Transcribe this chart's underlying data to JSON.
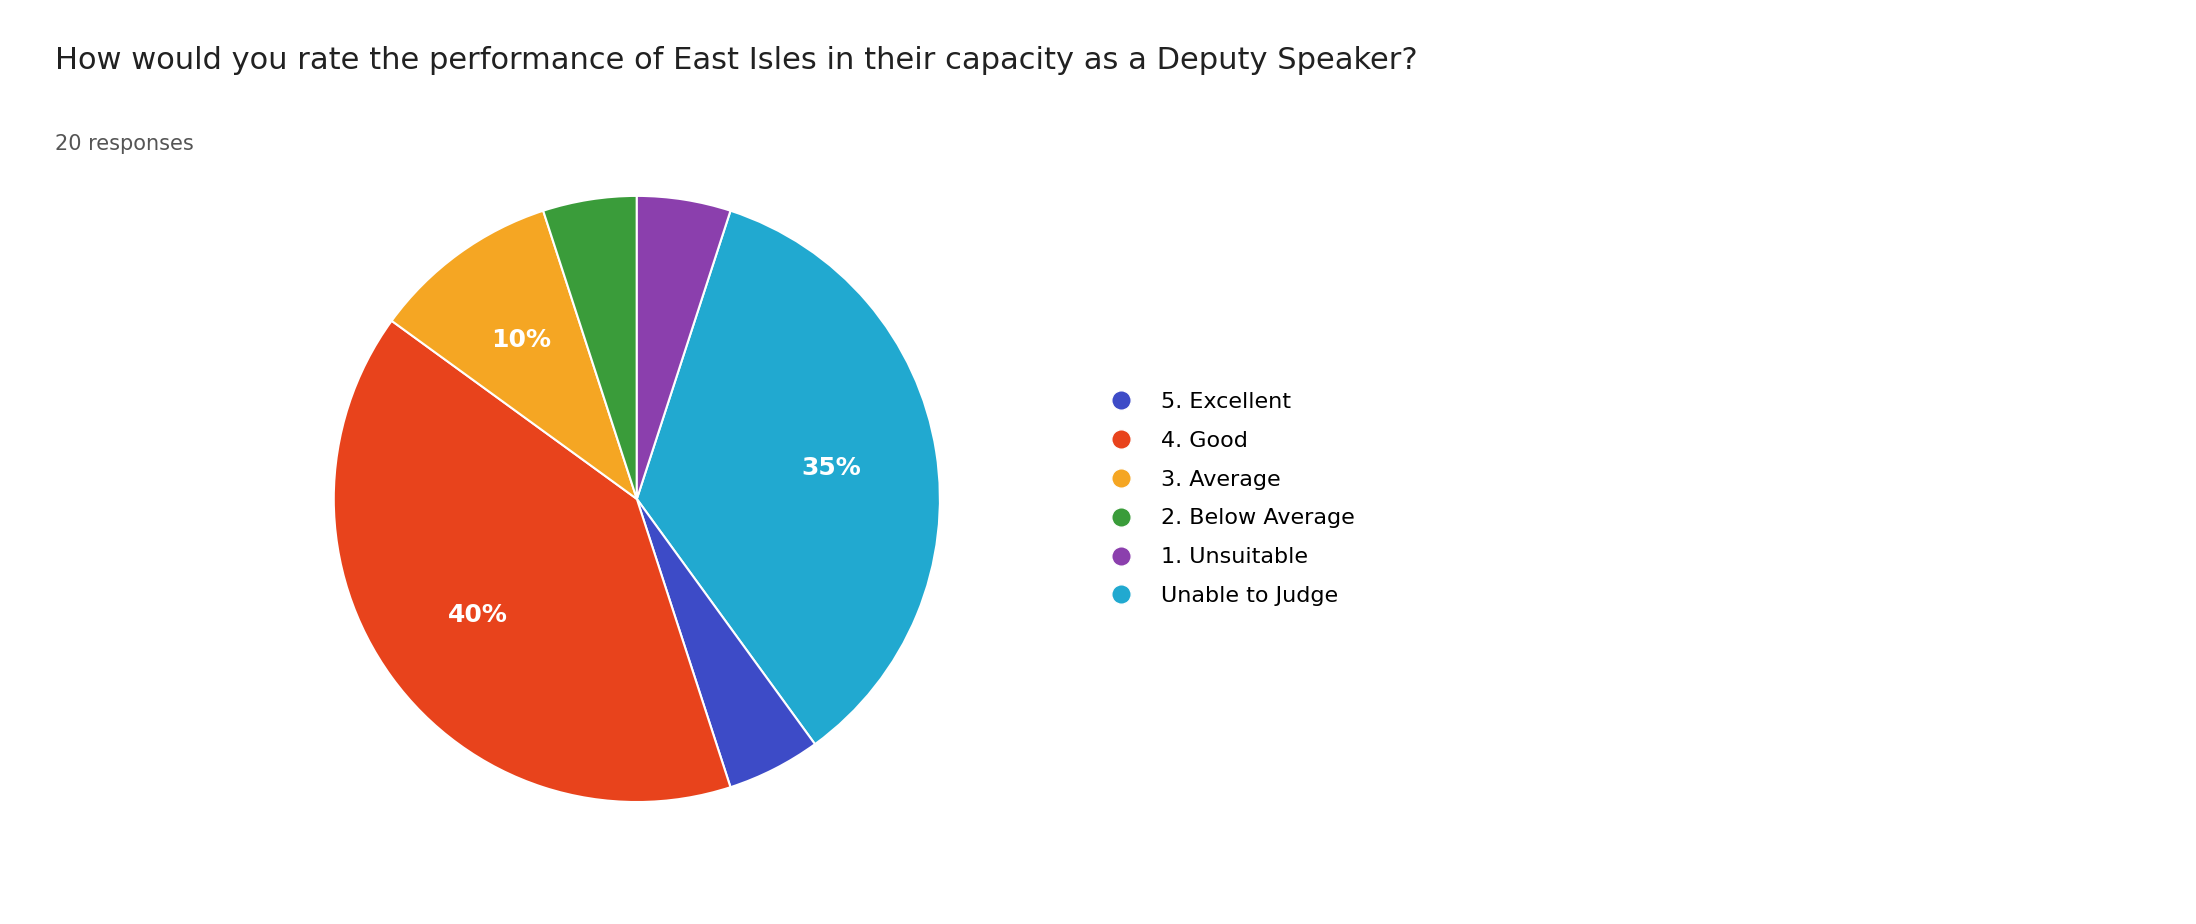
{
  "title": "How would you rate the performance of East Isles in their capacity as a Deputy Speaker?",
  "subtitle": "20 responses",
  "labels": [
    "Unable to Judge",
    "5. Excellent",
    "4. Good",
    "3. Average",
    "2. Below Average",
    "1. Unsuitable"
  ],
  "legend_labels": [
    "5. Excellent",
    "4. Good",
    "3. Average",
    "2. Below Average",
    "1. Unsuitable",
    "Unable to Judge"
  ],
  "values": [
    35,
    5,
    40,
    10,
    5,
    5
  ],
  "colors": [
    "#21a9d0",
    "#3d4bc7",
    "#e8431c",
    "#f5a623",
    "#3a9c3a",
    "#8b3fad"
  ],
  "legend_colors": [
    "#3d4bc7",
    "#e8431c",
    "#f5a623",
    "#3a9c3a",
    "#8b3fad",
    "#21a9d0"
  ],
  "title_fontsize": 22,
  "subtitle_fontsize": 15,
  "background_color": "#ffffff",
  "text_color": "#212121",
  "legend_fontsize": 16,
  "startangle": 72
}
